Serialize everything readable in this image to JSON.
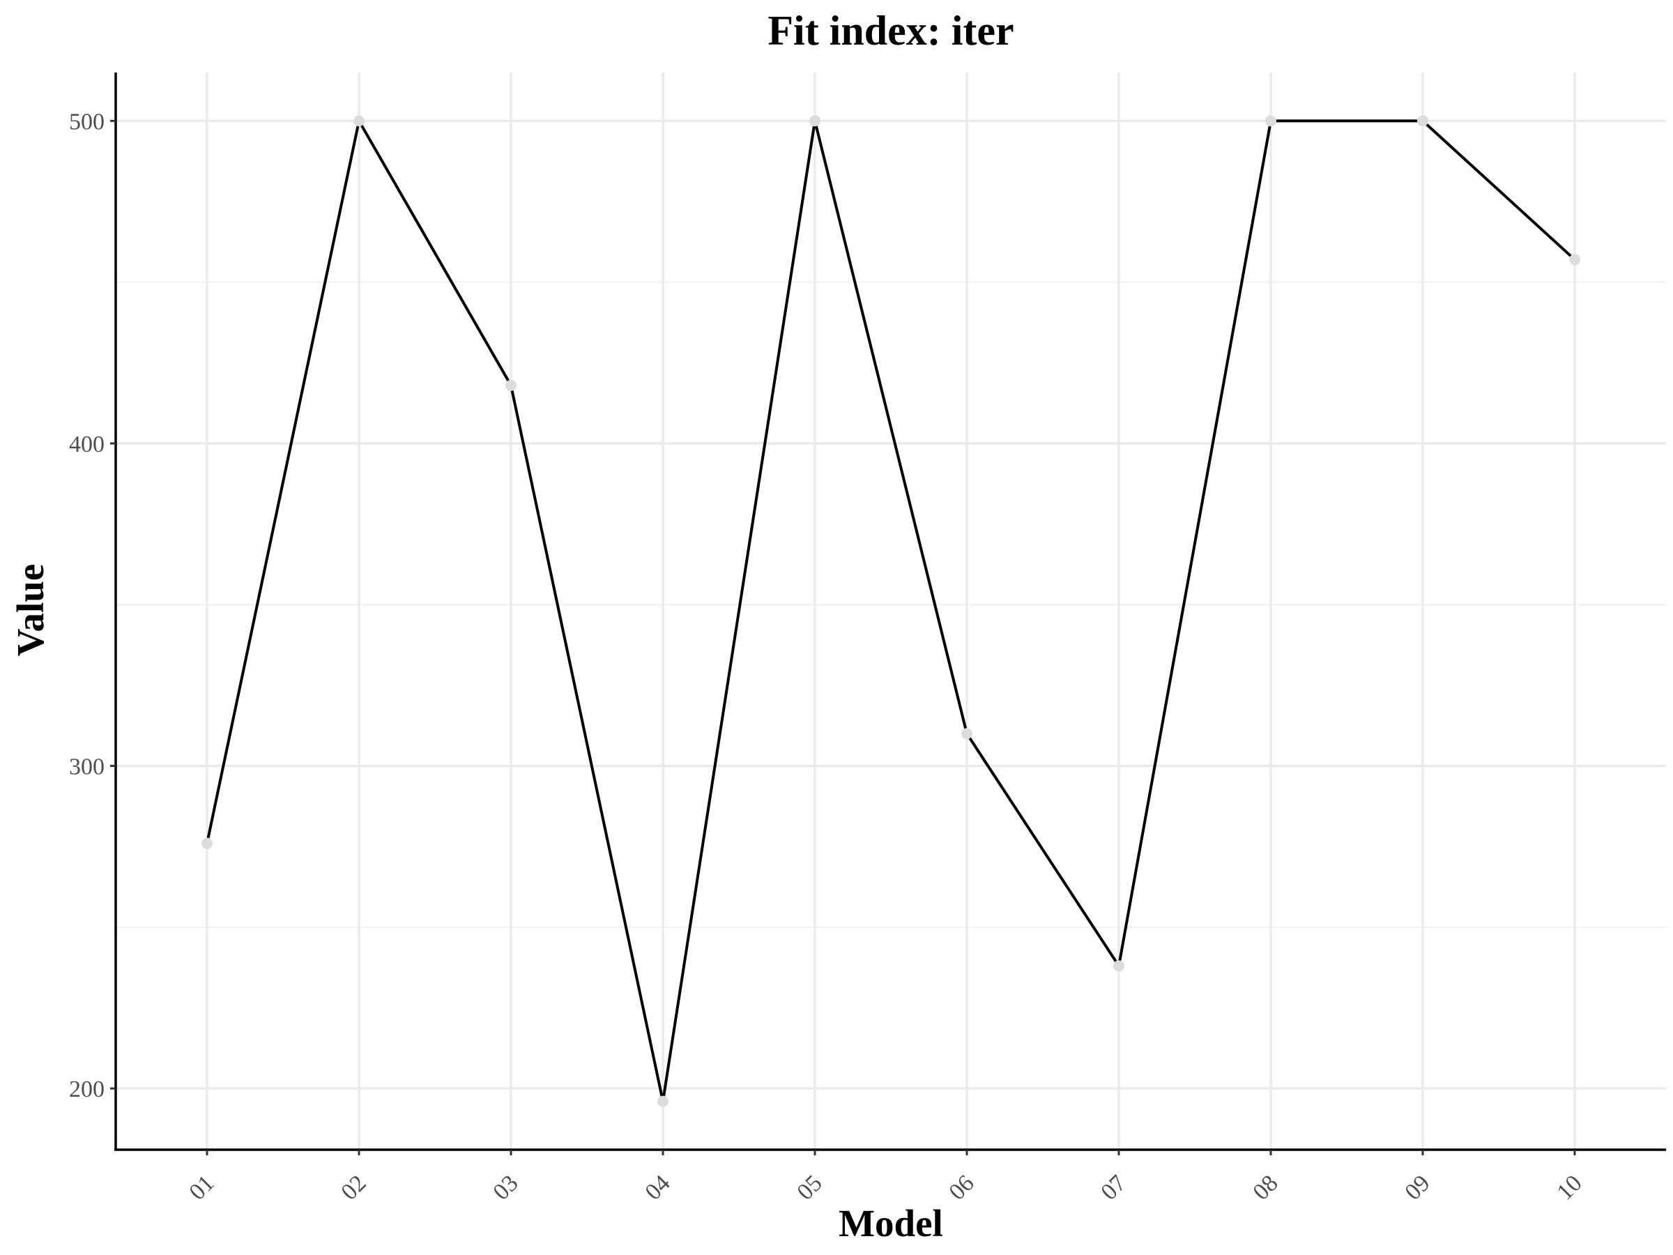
{
  "chart_data": {
    "type": "line",
    "title": "Fit index: iter",
    "xlabel": "Model",
    "ylabel": "Value",
    "categories": [
      "01",
      "02",
      "03",
      "04",
      "05",
      "06",
      "07",
      "08",
      "09",
      "10"
    ],
    "series": [
      {
        "values": [
          276,
          500,
          418,
          196,
          500,
          310,
          238,
          500,
          500,
          457
        ]
      }
    ],
    "ylim": [
      181,
      515
    ],
    "y_ticks": [
      200,
      300,
      400,
      500
    ],
    "y_ticks_labels": [
      "200",
      "300",
      "400",
      "500"
    ],
    "y_minor_ticks": [
      250,
      350,
      450
    ],
    "grid": true,
    "line_color": "#000000",
    "point_color": "#dcdcdc",
    "grid_color": "#ebebeb"
  }
}
